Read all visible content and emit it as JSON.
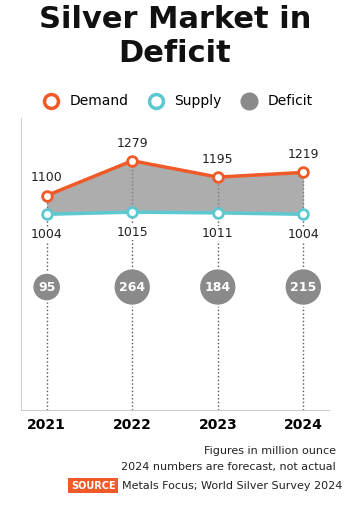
{
  "chart_data": {
    "type": "line",
    "title": "Silver Market in Deficit",
    "categories": [
      "2021",
      "2022",
      "2023",
      "2024"
    ],
    "series": [
      {
        "name": "Demand",
        "color": "#f05a28",
        "marker": "o",
        "values": [
          1100,
          1279,
          1195,
          1219
        ]
      },
      {
        "name": "Supply",
        "color": "#5cc8d0",
        "marker": "o",
        "values": [
          1004,
          1015,
          1011,
          1004
        ]
      },
      {
        "name": "Deficit",
        "type": "area",
        "color": "#8a8a8a",
        "values": [
          95,
          264,
          184,
          215
        ]
      }
    ],
    "ylim": [
      0,
      1500
    ],
    "yticks": [],
    "tick_labels": "x",
    "data_labels": true,
    "legend": "upper center",
    "notes": [
      "Figures in million ounce",
      "2024 numbers are forecast, not actual"
    ],
    "source_label": "SOURCE",
    "source": "Metals Focus; World Silver Survey 2024"
  }
}
